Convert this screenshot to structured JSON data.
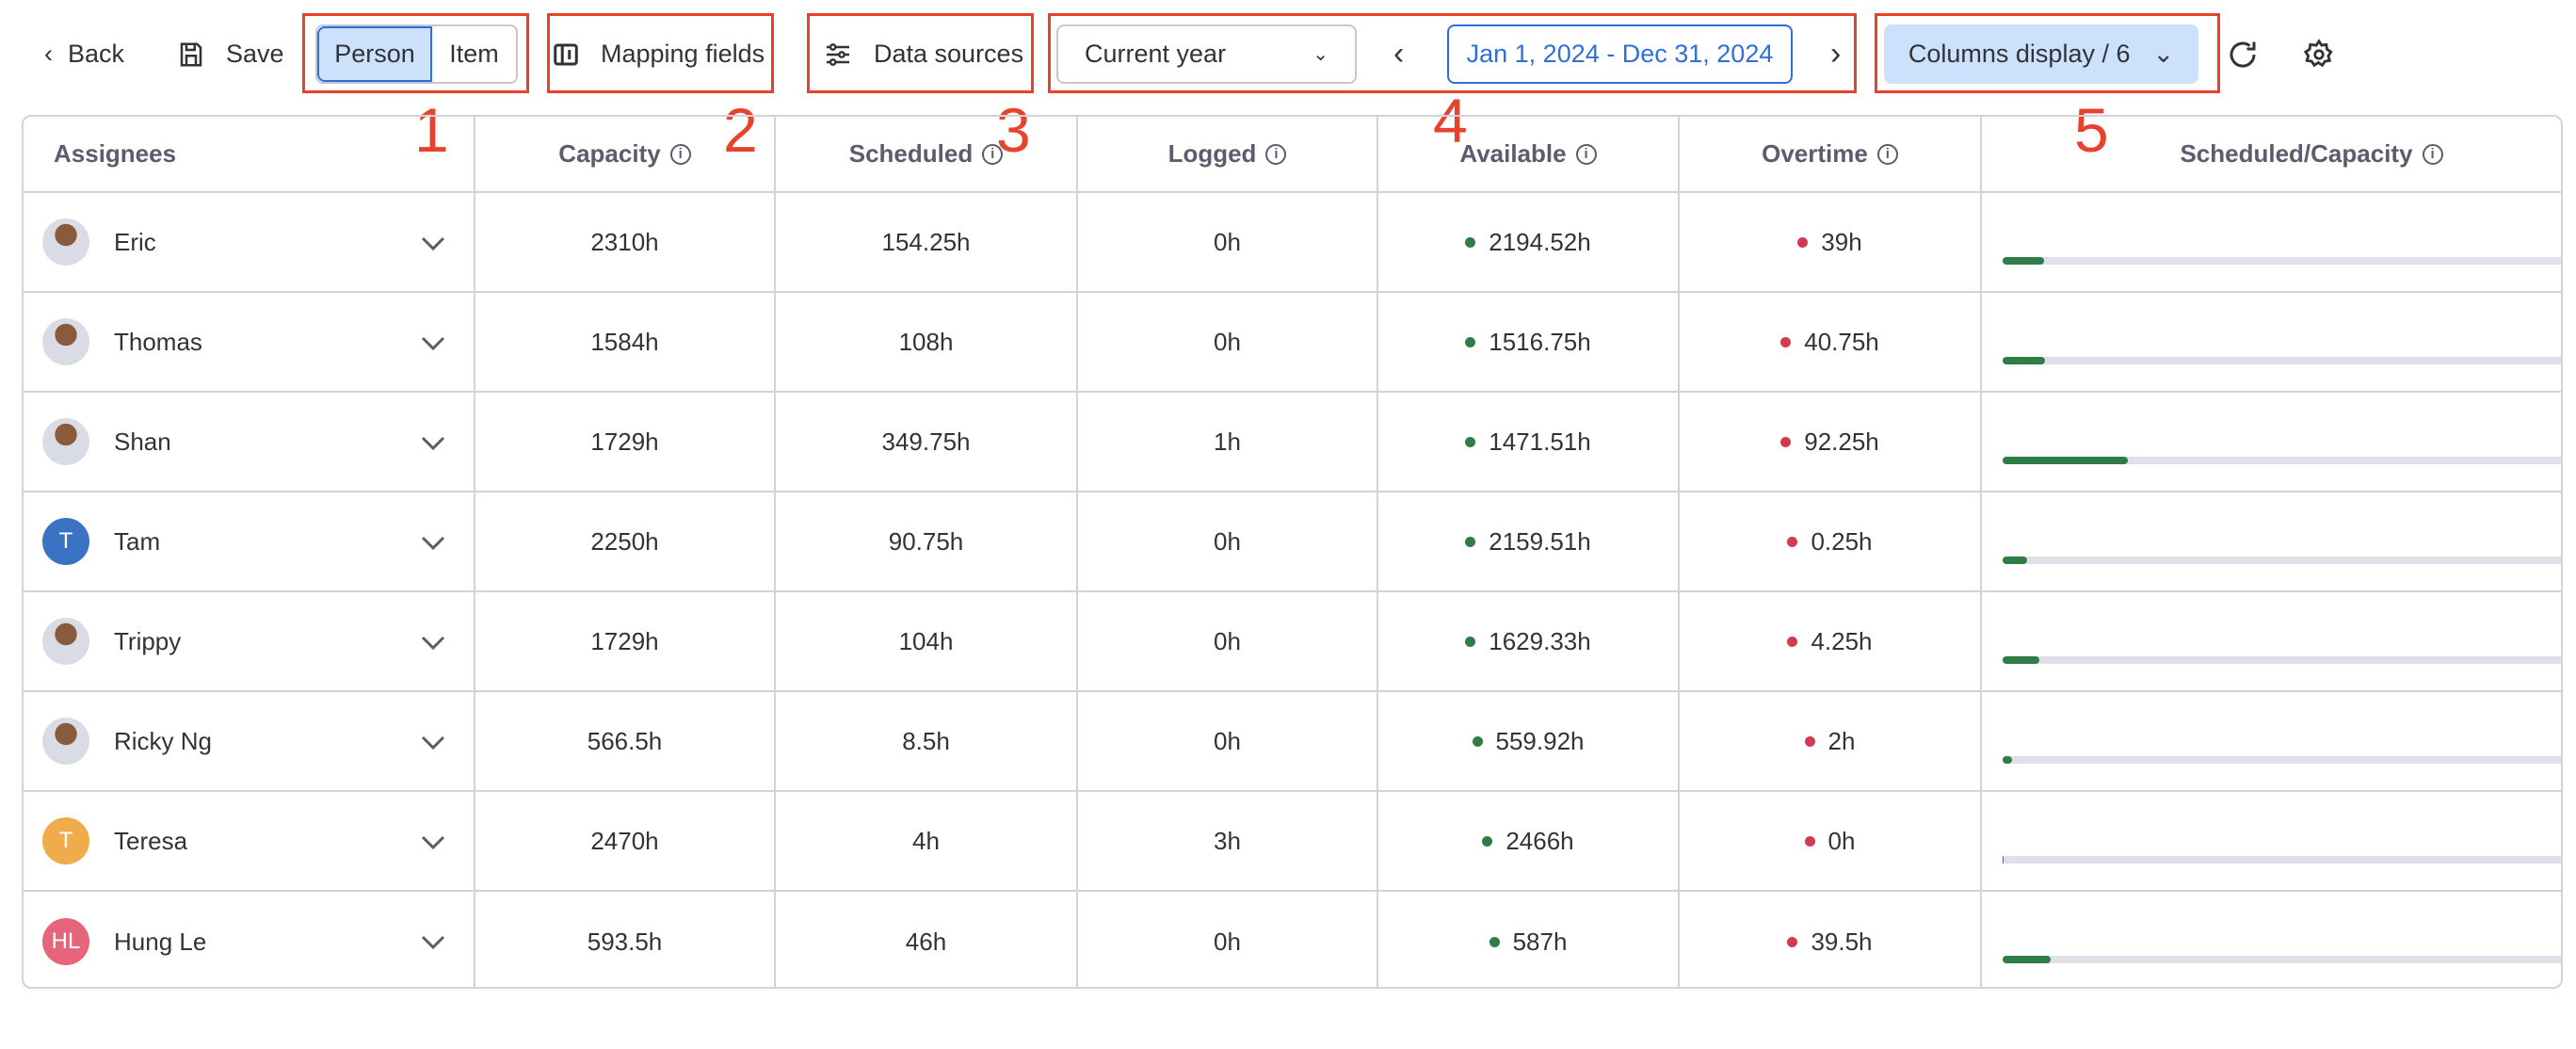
{
  "toolbar": {
    "back": "Back",
    "save": "Save",
    "toggle": [
      "Person",
      "Item"
    ],
    "mapping": "Mapping fields",
    "data_sources": "Data sources",
    "period": "Current year",
    "date_range": "Jan 1, 2024 - Dec 31, 2024",
    "columns_display": "Columns display / 6"
  },
  "annotations": [
    "1",
    "2",
    "3",
    "4",
    "5"
  ],
  "colors": {
    "accent": "#2f6fdb",
    "available": "#2e7d46",
    "overtime": "#d23a4f",
    "annotation": "#e8412c"
  },
  "table": {
    "headers": [
      "Assignees",
      "Capacity",
      "Scheduled",
      "Logged",
      "Available",
      "Overtime",
      "Scheduled/Capacity"
    ],
    "rows": [
      {
        "name": "Eric",
        "avatar": "photo",
        "capacity": "2310h",
        "scheduled": "154.25h",
        "logged": "0h",
        "available": "2194.52h",
        "overtime": "39h",
        "ratio": 0.0668
      },
      {
        "name": "Thomas",
        "avatar": "photo",
        "capacity": "1584h",
        "scheduled": "108h",
        "logged": "0h",
        "available": "1516.75h",
        "overtime": "40.75h",
        "ratio": 0.0682
      },
      {
        "name": "Shan",
        "avatar": "photo",
        "capacity": "1729h",
        "scheduled": "349.75h",
        "logged": "1h",
        "available": "1471.51h",
        "overtime": "92.25h",
        "ratio": 0.2023
      },
      {
        "name": "Tam",
        "avatar": "T",
        "avatar_color": "#3a73c4",
        "capacity": "2250h",
        "scheduled": "90.75h",
        "logged": "0h",
        "available": "2159.51h",
        "overtime": "0.25h",
        "ratio": 0.0403
      },
      {
        "name": "Trippy",
        "avatar": "photo",
        "capacity": "1729h",
        "scheduled": "104h",
        "logged": "0h",
        "available": "1629.33h",
        "overtime": "4.25h",
        "ratio": 0.0601
      },
      {
        "name": "Ricky Ng",
        "avatar": "photo",
        "capacity": "566.5h",
        "scheduled": "8.5h",
        "logged": "0h",
        "available": "559.92h",
        "overtime": "2h",
        "ratio": 0.015
      },
      {
        "name": "Teresa",
        "avatar": "T",
        "avatar_color": "#f0ac4a",
        "capacity": "2470h",
        "scheduled": "4h",
        "logged": "3h",
        "available": "2466h",
        "overtime": "0h",
        "ratio": 0.0016
      },
      {
        "name": "Hung Le",
        "avatar": "HL",
        "avatar_color": "#e5657a",
        "capacity": "593.5h",
        "scheduled": "46h",
        "logged": "0h",
        "available": "587h",
        "overtime": "39.5h",
        "ratio": 0.0775
      }
    ]
  }
}
